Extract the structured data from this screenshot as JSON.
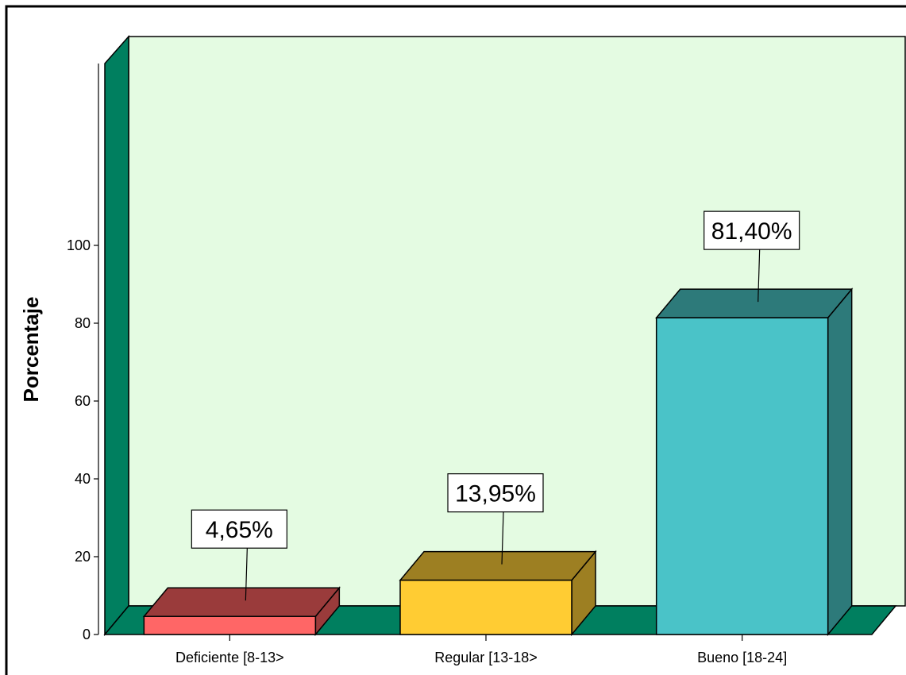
{
  "chart_data": {
    "type": "bar",
    "categories": [
      "Deficiente [8-13>",
      "Regular [13-18>",
      "Bueno [18-24]"
    ],
    "values": [
      4.65,
      13.95,
      81.4
    ],
    "data_labels": [
      "4,65%",
      "13,95%",
      "81,40%"
    ],
    "ylabel": "Porcentaje",
    "xlabel": "",
    "title": "",
    "ylim": [
      0,
      100
    ],
    "yticks": [
      0,
      20,
      40,
      60,
      80,
      100
    ],
    "three_d": true,
    "grid": false,
    "legend": "none",
    "colors": {
      "bar_fronts": [
        "#FF6666",
        "#FFCC33",
        "#4AC3C8"
      ],
      "bar_tops": [
        "#9A3B3B",
        "#9D7F22",
        "#2D7A7A"
      ],
      "bar_sides": [
        "#9A3B3B",
        "#9D7F22",
        "#2D7A7A"
      ],
      "plot_background": "#E4FBE2",
      "walls": "#007F5F",
      "frame": "#000000"
    }
  }
}
